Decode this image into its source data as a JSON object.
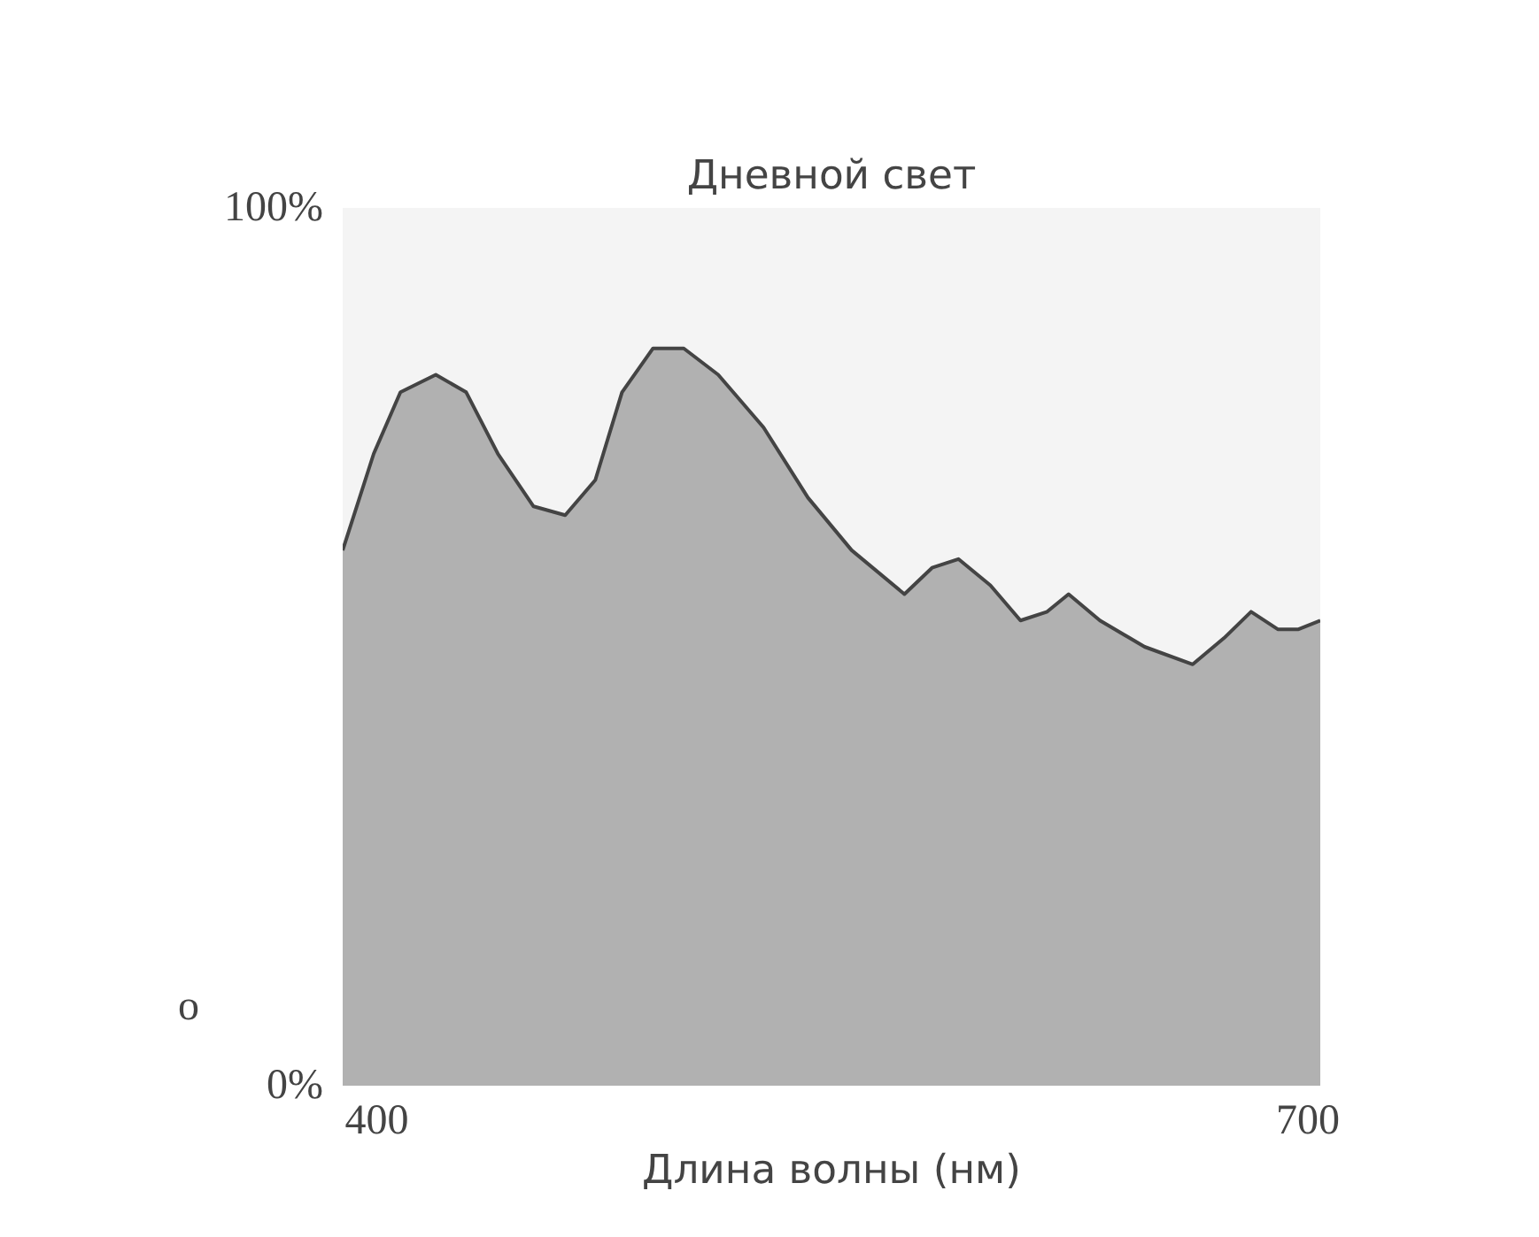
{
  "chart_data": {
    "type": "area",
    "title": "Дневной свет",
    "xlabel": "Длина волны (нм)",
    "x": [
      389,
      399,
      407.6,
      419,
      428.8,
      439,
      450.5,
      460.7,
      470.4,
      479,
      489,
      498.9,
      510,
      524.6,
      538.9,
      553,
      570,
      578.9,
      587.4,
      597.7,
      607.4,
      616,
      622.9,
      633,
      647.4,
      662.9,
      673,
      681.7,
      690.3,
      697,
      704
    ],
    "series": [
      {
        "color": "#aaaaaa",
        "values": [
          61,
          72,
          79,
          81,
          79,
          72,
          66,
          65,
          69,
          79,
          84,
          84,
          81,
          75,
          67,
          61,
          56,
          59,
          60,
          57,
          53,
          54,
          56,
          53,
          50,
          48,
          51,
          54,
          52,
          52,
          53
        ]
      }
    ],
    "xlim": [
      389,
      704
    ],
    "xticks": [
      400,
      700
    ],
    "ylim": [
      0,
      100
    ],
    "yticks": [
      {
        "value": 0,
        "label": "0%"
      },
      {
        "value": 100,
        "label": "100%"
      }
    ],
    "annotations": [
      "o"
    ],
    "grid": false,
    "marker": "none",
    "line_style": "solid"
  }
}
